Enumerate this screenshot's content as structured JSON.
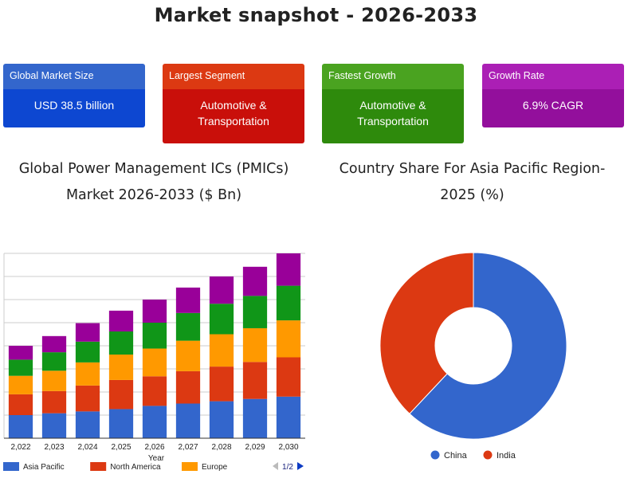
{
  "page_title": "Market snapshot - 2026-2033",
  "cards": [
    {
      "label": "Global Market Size",
      "value": "USD 38.5 billion",
      "color_head": "#3366cc",
      "color_body": "#0d47d1"
    },
    {
      "label": "Largest Segment",
      "value": "Automotive & Transportation",
      "color_head": "#dc3912",
      "color_body": "#c90f0a"
    },
    {
      "label": "Fastest Growth",
      "value": "Automotive & Transportation",
      "color_head": "#4aa320",
      "color_body": "#2e8a0c"
    },
    {
      "label": "Growth Rate",
      "value": "6.9% CAGR",
      "color_head": "#ab1fb5",
      "color_body": "#930f9c"
    }
  ],
  "bar_section_title": "Global Power Management ICs (PMICs) Market 2026-2033 ($ Bn)",
  "pie_section_title": "Country Share For Asia Pacific Region-2025 (%)",
  "chart_data": [
    {
      "type": "bar",
      "stacked": true,
      "xlabel": "Year",
      "categories": [
        "2,022",
        "2,023",
        "2,024",
        "2,025",
        "2,026",
        "2,027",
        "2,028",
        "2,029",
        "2,030"
      ],
      "ylim": [
        0,
        40
      ],
      "grid": true,
      "legend_position": "bottom",
      "legend_pager": "1/2",
      "series": [
        {
          "name": "Asia Pacific",
          "color": "#3366cc",
          "values": [
            5.0,
            5.4,
            5.8,
            6.3,
            7.0,
            7.5,
            8.0,
            8.5,
            9.0
          ]
        },
        {
          "name": "North America",
          "color": "#dc3912",
          "values": [
            4.5,
            4.8,
            5.6,
            6.3,
            6.4,
            7.0,
            7.5,
            8.0,
            8.5
          ]
        },
        {
          "name": "Europe",
          "color": "#ff9900",
          "values": [
            4.0,
            4.4,
            5.0,
            5.5,
            6.0,
            6.6,
            7.0,
            7.3,
            8.0
          ]
        },
        {
          "name": "",
          "color": "#109618",
          "values": [
            3.5,
            4.0,
            4.5,
            5.0,
            5.6,
            6.0,
            6.6,
            7.0,
            7.5
          ]
        },
        {
          "name": "",
          "color": "#990099",
          "values": [
            3.0,
            3.5,
            4.0,
            4.5,
            5.0,
            5.5,
            5.9,
            6.3,
            7.0
          ]
        }
      ]
    },
    {
      "type": "pie",
      "donut": true,
      "legend_position": "bottom",
      "slices": [
        {
          "name": "China",
          "value": 62,
          "color": "#3366cc"
        },
        {
          "name": "India",
          "value": 38,
          "color": "#dc3912"
        }
      ]
    }
  ]
}
